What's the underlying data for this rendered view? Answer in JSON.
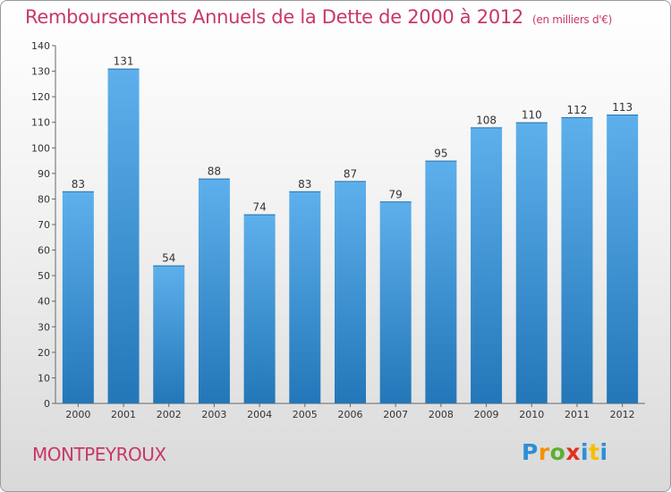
{
  "header": {
    "title": "Remboursements Annuels de la Dette de 2000 à 2012",
    "unit": "(en milliers d'€)"
  },
  "footer": {
    "commune": "MONTPEYROUX",
    "logo": "Proxiti"
  },
  "colors": {
    "title": "#c8376b",
    "bar_light": "#5eb0ec",
    "bar_dark": "#2377b8"
  },
  "chart_data": {
    "type": "bar",
    "title": "Remboursements Annuels de la Dette de 2000 à 2012",
    "subtitle": "(en milliers d'€)",
    "xlabel": "",
    "ylabel": "",
    "categories": [
      "2000",
      "2001",
      "2002",
      "2003",
      "2004",
      "2005",
      "2006",
      "2007",
      "2008",
      "2009",
      "2010",
      "2011",
      "2012"
    ],
    "values": [
      83,
      131,
      54,
      88,
      74,
      83,
      87,
      79,
      95,
      108,
      110,
      112,
      113
    ],
    "ylim": [
      0,
      140
    ],
    "yticks": [
      0,
      10,
      20,
      30,
      40,
      50,
      60,
      70,
      80,
      90,
      100,
      110,
      120,
      130,
      140
    ],
    "grid": false,
    "legend": "none"
  }
}
